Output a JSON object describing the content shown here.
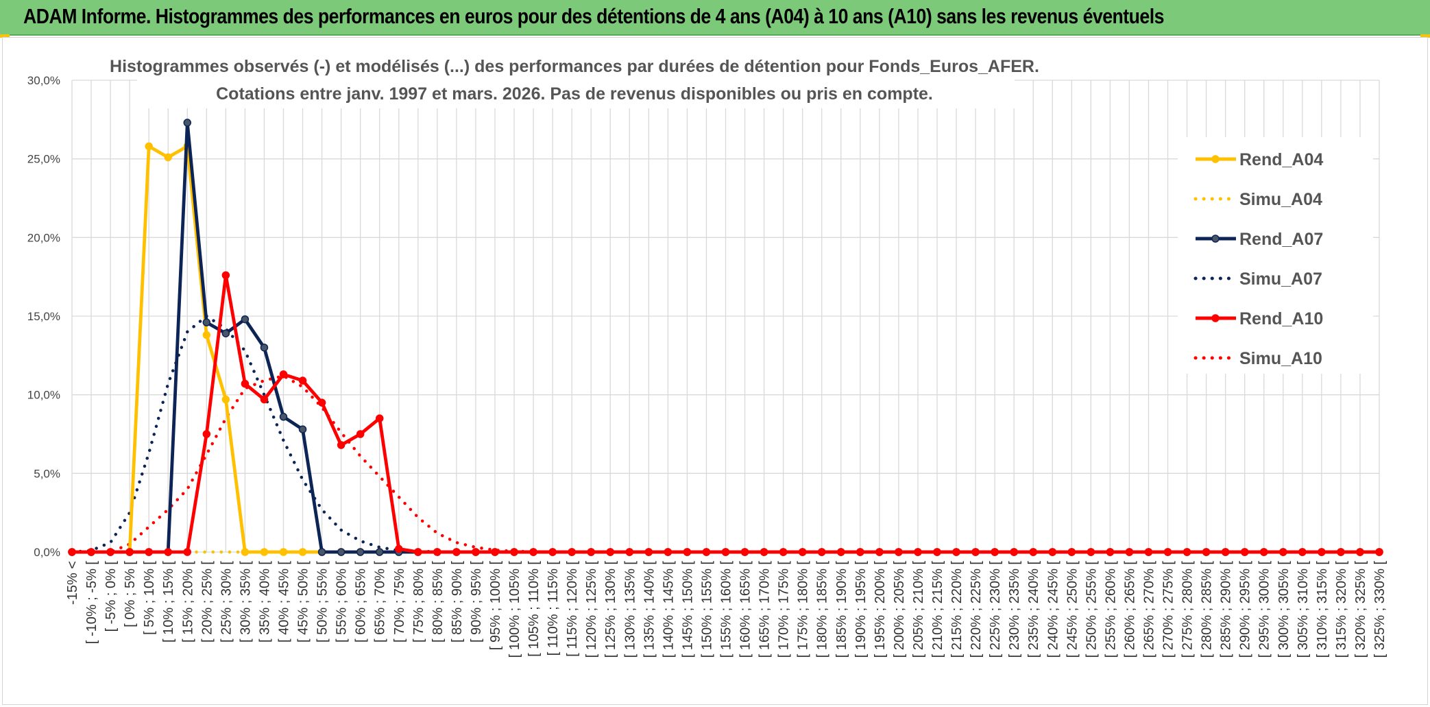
{
  "banner": {
    "title": "ADAM Informe. Histogrammes des performances en euros pour des détentions de 4 ans (A04) à 10 ans (A10) sans les revenus éventuels",
    "background": "#7dc97a",
    "corner_color": "#f4c40f"
  },
  "chart_data": {
    "type": "line",
    "title_lines": [
      "Histogrammes observés (-) et modélisés (...) des performances par durées de détention pour Fonds_Euros_AFER.",
      "Cotations entre janv. 1997 et mars. 2026. Pas de revenus disponibles ou pris en compte."
    ],
    "ylim": [
      0,
      30
    ],
    "yticks": [
      0,
      5,
      10,
      15,
      20,
      25,
      30
    ],
    "ytick_labels": [
      "0,0%",
      "5,0%",
      "10,0%",
      "15,0%",
      "20,0%",
      "25,0%",
      "30,0%"
    ],
    "grid": true,
    "legend_position": "right",
    "categories": [
      "-15% <",
      "[ -10% ; -5% [",
      "[ -5% ; 0% [",
      "[ 0% ; 5% [",
      "[ 5% ; 10% [",
      "[ 10% ; 15% [",
      "[ 15% ; 20% [",
      "[ 20% ; 25% [",
      "[ 25% ; 30% [",
      "[ 30% ; 35% [",
      "[ 35% ; 40% [",
      "[ 40% ; 45% [",
      "[ 45% ; 50% [",
      "[ 50% ; 55% [",
      "[ 55% ; 60% [",
      "[ 60% ; 65% [",
      "[ 65% ; 70% [",
      "[ 70% ; 75% [",
      "[ 75% ; 80% [",
      "[ 80% ; 85% [",
      "[ 85% ; 90% [",
      "[ 90% ; 95% [",
      "[ 95% ; 100% [",
      "[ 100% ; 105% [",
      "[ 105% ; 110% [",
      "[ 110% ; 115% [",
      "[ 115% ; 120% [",
      "[ 120% ; 125% [",
      "[ 125% ; 130% [",
      "[ 130% ; 135% [",
      "[ 135% ; 140% [",
      "[ 140% ; 145% [",
      "[ 145% ; 150% [",
      "[ 150% ; 155% [",
      "[ 155% ; 160% [",
      "[ 160% ; 165% [",
      "[ 165% ; 170% [",
      "[ 170% ; 175% [",
      "[ 175% ; 180% [",
      "[ 180% ; 185% [",
      "[ 185% ; 190% [",
      "[ 190% ; 195% [",
      "[ 195% ; 200% [",
      "[ 200% ; 205% [",
      "[ 205% ; 210% [",
      "[ 210% ; 215% [",
      "[ 215% ; 220% [",
      "[ 220% ; 225% [",
      "[ 225% ; 230% [",
      "[ 230% ; 235% [",
      "[ 235% ; 240% [",
      "[ 240% ; 245% [",
      "[ 245% ; 250% [",
      "[ 250% ; 255% [",
      "[ 255% ; 260% [",
      "[ 260% ; 265% [",
      "[ 265% ; 270% [",
      "[ 270% ; 275% [",
      "[ 275% ; 280% [",
      "[ 280% ; 285% [",
      "[ 285% ; 290% [",
      "[ 290% ; 295% [",
      "[ 295% ; 300% [",
      "[ 300% ; 305% [",
      "[ 305% ; 310% [",
      "[ 310% ; 315% [",
      "[ 315% ; 320% [",
      "[ 320% ; 325% [",
      "[ 325% ; 330% ["
    ],
    "series": [
      {
        "name": "Rend_A04",
        "color": "#ffc000",
        "style": "solid",
        "markers": true,
        "values": [
          0,
          0,
          0,
          0,
          25.8,
          25.1,
          25.8,
          13.8,
          9.7,
          0,
          0,
          0,
          0,
          0,
          0,
          0,
          0,
          0,
          0,
          0,
          0,
          0,
          0,
          0,
          0,
          0,
          0,
          0,
          0,
          0,
          0,
          0,
          0,
          0,
          0,
          0,
          0,
          0,
          0,
          0,
          0,
          0,
          0,
          0,
          0,
          0,
          0,
          0,
          0,
          0,
          0,
          0,
          0,
          0,
          0,
          0,
          0,
          0,
          0,
          0,
          0,
          0,
          0,
          0,
          0,
          0,
          0,
          0,
          0
        ]
      },
      {
        "name": "Simu_A04",
        "color": "#ffc000",
        "style": "dotted",
        "markers": false,
        "values": [
          0,
          0,
          0,
          0,
          0,
          0,
          0,
          0,
          0,
          0,
          0,
          0,
          0,
          0,
          0,
          0,
          0,
          0,
          0,
          0,
          0,
          0,
          0,
          0,
          0,
          0,
          0,
          0,
          0,
          0,
          0,
          0,
          0,
          0,
          0,
          0,
          0,
          0,
          0,
          0,
          0,
          0,
          0,
          0,
          0,
          0,
          0,
          0,
          0,
          0,
          0,
          0,
          0,
          0,
          0,
          0,
          0,
          0,
          0,
          0,
          0,
          0,
          0,
          0,
          0,
          0,
          0,
          0,
          0
        ]
      },
      {
        "name": "Rend_A07",
        "color": "#0d2457",
        "style": "solid",
        "markers": true,
        "values": [
          0,
          0,
          0,
          0,
          0,
          0,
          27.3,
          14.6,
          13.9,
          14.8,
          13,
          8.6,
          7.8,
          0,
          0,
          0,
          0,
          0,
          0,
          0,
          0,
          0,
          0,
          0,
          0,
          0,
          0,
          0,
          0,
          0,
          0,
          0,
          0,
          0,
          0,
          0,
          0,
          0,
          0,
          0,
          0,
          0,
          0,
          0,
          0,
          0,
          0,
          0,
          0,
          0,
          0,
          0,
          0,
          0,
          0,
          0,
          0,
          0,
          0,
          0,
          0,
          0,
          0,
          0,
          0,
          0,
          0,
          0,
          0
        ]
      },
      {
        "name": "Simu_A07",
        "color": "#0d2457",
        "style": "dotted",
        "markers": false,
        "values": [
          0,
          0.1,
          0.6,
          2.5,
          6.3,
          10.7,
          14,
          15,
          14.2,
          12.8,
          10,
          7.1,
          4.6,
          2.7,
          1.4,
          0.7,
          0.3,
          0.1,
          0.05,
          0.02,
          0,
          0,
          0,
          0,
          0,
          0,
          0,
          0,
          0,
          0,
          0,
          0,
          0,
          0,
          0,
          0,
          0,
          0,
          0,
          0,
          0,
          0,
          0,
          0,
          0,
          0,
          0,
          0,
          0,
          0,
          0,
          0,
          0,
          0,
          0,
          0,
          0,
          0,
          0,
          0,
          0,
          0,
          0,
          0,
          0,
          0,
          0,
          0,
          0
        ]
      },
      {
        "name": "Rend_A10",
        "color": "#ff0000",
        "style": "solid",
        "markers": true,
        "values": [
          0,
          0,
          0,
          0,
          0,
          0,
          0,
          7.5,
          17.6,
          10.7,
          9.7,
          11.3,
          10.9,
          9.5,
          6.8,
          7.5,
          8.5,
          0.2,
          0,
          0,
          0,
          0,
          0,
          0,
          0,
          0,
          0,
          0,
          0,
          0,
          0,
          0,
          0,
          0,
          0,
          0,
          0,
          0,
          0,
          0,
          0,
          0,
          0,
          0,
          0,
          0,
          0,
          0,
          0,
          0,
          0,
          0,
          0,
          0,
          0,
          0,
          0,
          0,
          0,
          0,
          0,
          0,
          0,
          0,
          0,
          0,
          0,
          0,
          0
        ]
      },
      {
        "name": "Simu_A10",
        "color": "#ff0000",
        "style": "dotted",
        "markers": false,
        "values": [
          0,
          0,
          0,
          0.5,
          1.6,
          2.7,
          4,
          6.2,
          8.5,
          10.4,
          10.9,
          11.2,
          10.5,
          9.2,
          7.6,
          6.1,
          4.8,
          3.5,
          2.2,
          1.2,
          0.6,
          0.3,
          0.12,
          0.05,
          0.02,
          0,
          0,
          0,
          0,
          0,
          0,
          0,
          0,
          0,
          0,
          0,
          0,
          0,
          0,
          0,
          0,
          0,
          0,
          0,
          0,
          0,
          0,
          0,
          0,
          0,
          0,
          0,
          0,
          0,
          0,
          0,
          0,
          0,
          0,
          0,
          0,
          0,
          0,
          0,
          0,
          0,
          0,
          0,
          0
        ]
      }
    ]
  }
}
